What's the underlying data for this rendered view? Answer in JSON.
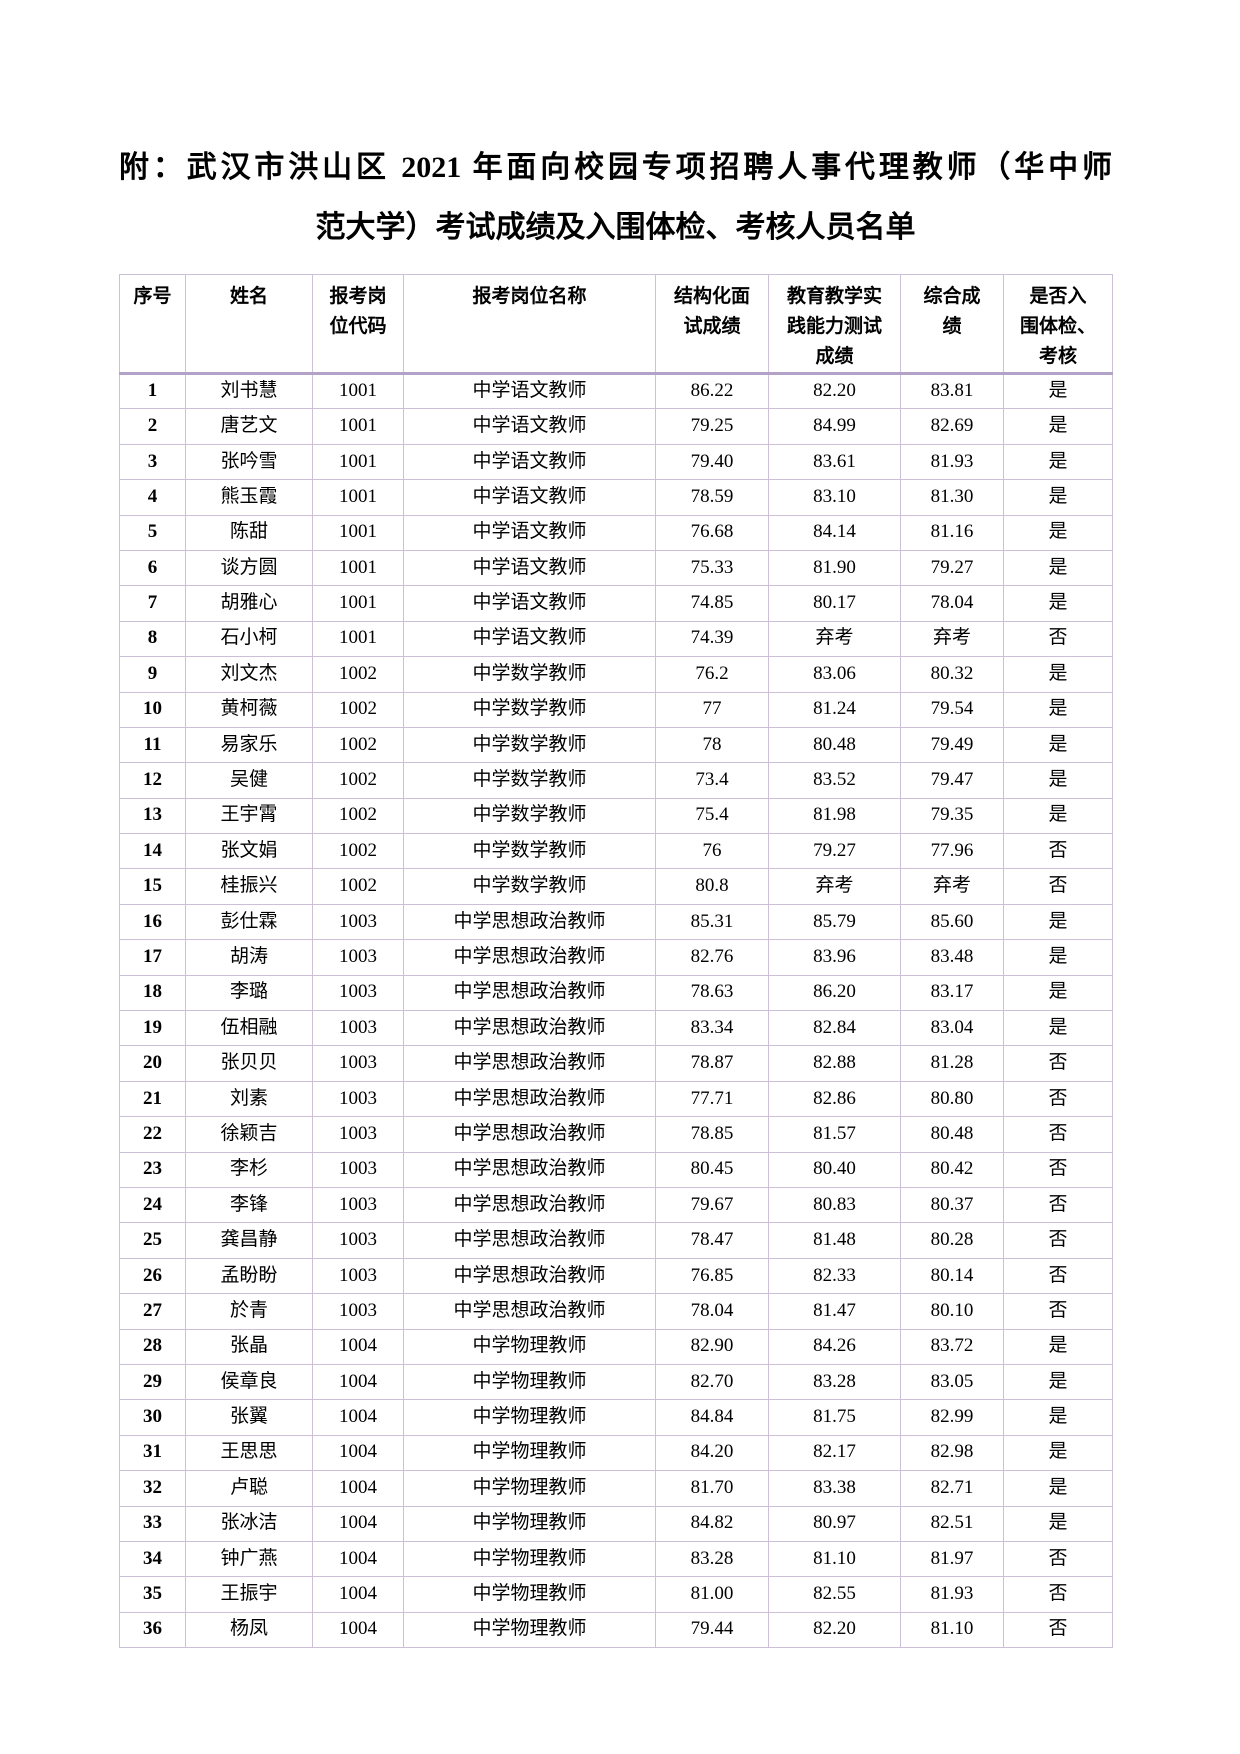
{
  "title": {
    "line1": "附：武汉市洪山区 2021 年面向校园专项招聘人事代理教师（华中师",
    "line2": "范大学）考试成绩及入围体检、考核人员名单"
  },
  "table": {
    "border_color_thin": "#ccc0d9",
    "border_color_thick": "#b2a2c7",
    "headers": [
      "序号",
      "姓名",
      "报考岗\n位代码",
      "报考岗位名称",
      "结构化面\n试成绩",
      "教育教学实\n践能力测试\n成绩",
      "综合成\n绩",
      "是否入\n围体检、\n考核"
    ],
    "rows": [
      [
        "1",
        "刘书慧",
        "1001",
        "中学语文教师",
        "86.22",
        "82.20",
        "83.81",
        "是"
      ],
      [
        "2",
        "唐艺文",
        "1001",
        "中学语文教师",
        "79.25",
        "84.99",
        "82.69",
        "是"
      ],
      [
        "3",
        "张吟雪",
        "1001",
        "中学语文教师",
        "79.40",
        "83.61",
        "81.93",
        "是"
      ],
      [
        "4",
        "熊玉霞",
        "1001",
        "中学语文教师",
        "78.59",
        "83.10",
        "81.30",
        "是"
      ],
      [
        "5",
        "陈甜",
        "1001",
        "中学语文教师",
        "76.68",
        "84.14",
        "81.16",
        "是"
      ],
      [
        "6",
        "谈方圆",
        "1001",
        "中学语文教师",
        "75.33",
        "81.90",
        "79.27",
        "是"
      ],
      [
        "7",
        "胡雅心",
        "1001",
        "中学语文教师",
        "74.85",
        "80.17",
        "78.04",
        "是"
      ],
      [
        "8",
        "石小柯",
        "1001",
        "中学语文教师",
        "74.39",
        "弃考",
        "弃考",
        "否"
      ],
      [
        "9",
        "刘文杰",
        "1002",
        "中学数学教师",
        "76.2",
        "83.06",
        "80.32",
        "是"
      ],
      [
        "10",
        "黄柯薇",
        "1002",
        "中学数学教师",
        "77",
        "81.24",
        "79.54",
        "是"
      ],
      [
        "11",
        "易家乐",
        "1002",
        "中学数学教师",
        "78",
        "80.48",
        "79.49",
        "是"
      ],
      [
        "12",
        "吴健",
        "1002",
        "中学数学教师",
        "73.4",
        "83.52",
        "79.47",
        "是"
      ],
      [
        "13",
        "王宇霄",
        "1002",
        "中学数学教师",
        "75.4",
        "81.98",
        "79.35",
        "是"
      ],
      [
        "14",
        "张文娟",
        "1002",
        "中学数学教师",
        "76",
        "79.27",
        "77.96",
        "否"
      ],
      [
        "15",
        "桂振兴",
        "1002",
        "中学数学教师",
        "80.8",
        "弃考",
        "弃考",
        "否"
      ],
      [
        "16",
        "彭仕霖",
        "1003",
        "中学思想政治教师",
        "85.31",
        "85.79",
        "85.60",
        "是"
      ],
      [
        "17",
        "胡涛",
        "1003",
        "中学思想政治教师",
        "82.76",
        "83.96",
        "83.48",
        "是"
      ],
      [
        "18",
        "李璐",
        "1003",
        "中学思想政治教师",
        "78.63",
        "86.20",
        "83.17",
        "是"
      ],
      [
        "19",
        "伍相融",
        "1003",
        "中学思想政治教师",
        "83.34",
        "82.84",
        "83.04",
        "是"
      ],
      [
        "20",
        "张贝贝",
        "1003",
        "中学思想政治教师",
        "78.87",
        "82.88",
        "81.28",
        "否"
      ],
      [
        "21",
        "刘素",
        "1003",
        "中学思想政治教师",
        "77.71",
        "82.86",
        "80.80",
        "否"
      ],
      [
        "22",
        "徐颖吉",
        "1003",
        "中学思想政治教师",
        "78.85",
        "81.57",
        "80.48",
        "否"
      ],
      [
        "23",
        "李杉",
        "1003",
        "中学思想政治教师",
        "80.45",
        "80.40",
        "80.42",
        "否"
      ],
      [
        "24",
        "李锋",
        "1003",
        "中学思想政治教师",
        "79.67",
        "80.83",
        "80.37",
        "否"
      ],
      [
        "25",
        "龚昌静",
        "1003",
        "中学思想政治教师",
        "78.47",
        "81.48",
        "80.28",
        "否"
      ],
      [
        "26",
        "孟盼盼",
        "1003",
        "中学思想政治教师",
        "76.85",
        "82.33",
        "80.14",
        "否"
      ],
      [
        "27",
        "於青",
        "1003",
        "中学思想政治教师",
        "78.04",
        "81.47",
        "80.10",
        "否"
      ],
      [
        "28",
        "张晶",
        "1004",
        "中学物理教师",
        "82.90",
        "84.26",
        "83.72",
        "是"
      ],
      [
        "29",
        "侯章良",
        "1004",
        "中学物理教师",
        "82.70",
        "83.28",
        "83.05",
        "是"
      ],
      [
        "30",
        "张翼",
        "1004",
        "中学物理教师",
        "84.84",
        "81.75",
        "82.99",
        "是"
      ],
      [
        "31",
        "王思思",
        "1004",
        "中学物理教师",
        "84.20",
        "82.17",
        "82.98",
        "是"
      ],
      [
        "32",
        "卢聪",
        "1004",
        "中学物理教师",
        "81.70",
        "83.38",
        "82.71",
        "是"
      ],
      [
        "33",
        "张冰洁",
        "1004",
        "中学物理教师",
        "84.82",
        "80.97",
        "82.51",
        "是"
      ],
      [
        "34",
        "钟广燕",
        "1004",
        "中学物理教师",
        "83.28",
        "81.10",
        "81.97",
        "否"
      ],
      [
        "35",
        "王振宇",
        "1004",
        "中学物理教师",
        "81.00",
        "82.55",
        "81.93",
        "否"
      ],
      [
        "36",
        "杨凤",
        "1004",
        "中学物理教师",
        "79.44",
        "82.20",
        "81.10",
        "否"
      ]
    ]
  }
}
